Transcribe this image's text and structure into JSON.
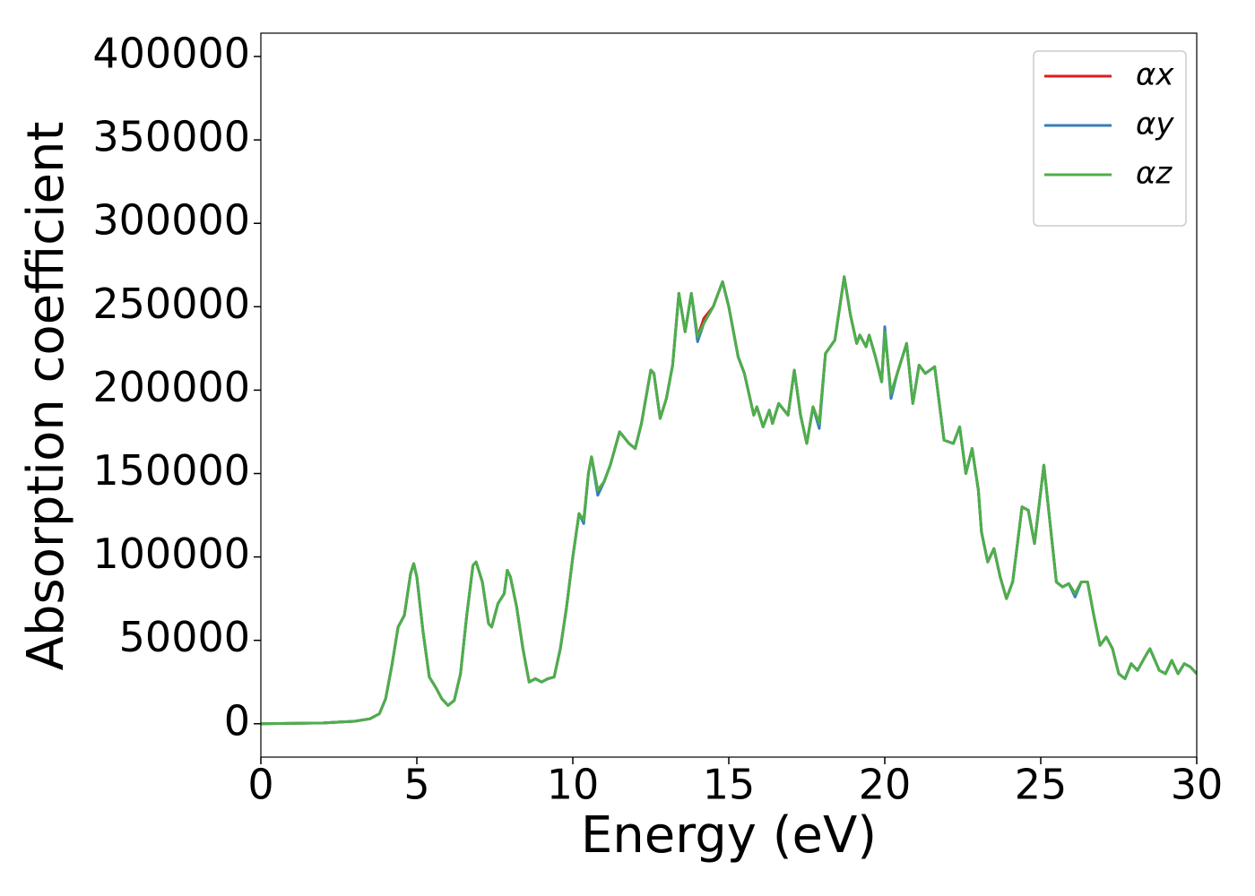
{
  "chart_data": {
    "type": "line",
    "xlabel": "Energy (eV)",
    "ylabel": "Absorption coefficient",
    "xlim": [
      0,
      30
    ],
    "ylim": [
      -20000,
      414000
    ],
    "xticks": [
      0,
      5,
      10,
      15,
      20,
      25,
      30
    ],
    "yticks": [
      0,
      50000,
      100000,
      150000,
      200000,
      250000,
      300000,
      350000,
      400000
    ],
    "grid": false,
    "legend": "upper right",
    "x": [
      0,
      2,
      3,
      3.5,
      3.8,
      4.0,
      4.2,
      4.4,
      4.6,
      4.8,
      4.9,
      5.0,
      5.2,
      5.4,
      5.6,
      5.8,
      6.0,
      6.2,
      6.4,
      6.6,
      6.8,
      6.9,
      7.1,
      7.3,
      7.4,
      7.6,
      7.8,
      7.9,
      8.0,
      8.2,
      8.4,
      8.6,
      8.8,
      9.0,
      9.2,
      9.4,
      9.6,
      9.8,
      10.0,
      10.2,
      10.35,
      10.5,
      10.6,
      10.8,
      11.0,
      11.2,
      11.5,
      11.8,
      12.0,
      12.2,
      12.5,
      12.6,
      12.8,
      13.0,
      13.2,
      13.4,
      13.6,
      13.8,
      14.0,
      14.2,
      14.5,
      14.8,
      15.0,
      15.3,
      15.5,
      15.8,
      15.9,
      16.1,
      16.3,
      16.4,
      16.6,
      16.9,
      17.1,
      17.3,
      17.5,
      17.7,
      17.9,
      18.1,
      18.4,
      18.7,
      18.9,
      19.1,
      19.2,
      19.4,
      19.5,
      19.7,
      19.9,
      20.0,
      20.2,
      20.4,
      20.7,
      20.9,
      21.1,
      21.3,
      21.6,
      21.9,
      22.2,
      22.4,
      22.6,
      22.8,
      23.0,
      23.1,
      23.3,
      23.5,
      23.7,
      23.9,
      24.1,
      24.4,
      24.6,
      24.8,
      25.1,
      25.3,
      25.5,
      25.7,
      25.9,
      26.1,
      26.3,
      26.5,
      26.7,
      26.9,
      27.1,
      27.3,
      27.5,
      27.7,
      27.9,
      28.1,
      28.4,
      28.5,
      28.8,
      29.0,
      29.2,
      29.4,
      29.6,
      29.8,
      30.0
    ],
    "series": [
      {
        "name": "αx",
        "color": "#e41a1c",
        "values": [
          0,
          500,
          1500,
          3000,
          6000,
          15000,
          35000,
          58000,
          65000,
          90000,
          96000,
          88000,
          55000,
          28000,
          22000,
          15000,
          11000,
          14000,
          30000,
          65000,
          95000,
          97000,
          85000,
          60000,
          58000,
          72000,
          78000,
          92000,
          88000,
          70000,
          45000,
          25000,
          27000,
          25000,
          27000,
          28000,
          45000,
          70000,
          100000,
          126000,
          122000,
          150000,
          160000,
          140000,
          145000,
          155000,
          175000,
          168000,
          165000,
          180000,
          212000,
          210000,
          183000,
          195000,
          215000,
          258000,
          235000,
          258000,
          232000,
          243000,
          250000,
          265000,
          250000,
          220000,
          210000,
          185000,
          190000,
          178000,
          188000,
          180000,
          192000,
          185000,
          212000,
          185000,
          168000,
          190000,
          180000,
          222000,
          230000,
          268000,
          245000,
          228000,
          233000,
          226000,
          233000,
          220000,
          205000,
          235000,
          198000,
          210000,
          228000,
          192000,
          215000,
          210000,
          214000,
          170000,
          168000,
          178000,
          150000,
          165000,
          140000,
          115000,
          97000,
          105000,
          88000,
          75000,
          85000,
          130000,
          128000,
          108000,
          155000,
          120000,
          85000,
          82000,
          84000,
          78000,
          85000,
          85000,
          65000,
          47000,
          52000,
          45000,
          30000,
          27000,
          36000,
          32000,
          42000,
          45000,
          32000,
          30000,
          38000,
          30000,
          36000,
          34000,
          30000
        ]
      },
      {
        "name": "αy",
        "color": "#377eb8",
        "values": [
          0,
          500,
          1500,
          3000,
          6000,
          15000,
          35000,
          58000,
          65000,
          90000,
          96000,
          88000,
          55000,
          28000,
          22000,
          15000,
          11000,
          14000,
          30000,
          65000,
          95000,
          97000,
          85000,
          60000,
          58000,
          72000,
          78000,
          92000,
          88000,
          70000,
          45000,
          25000,
          27000,
          25000,
          27000,
          28000,
          45000,
          70000,
          100000,
          126000,
          120000,
          150000,
          160000,
          137000,
          145000,
          155000,
          175000,
          168000,
          165000,
          180000,
          212000,
          210000,
          183000,
          195000,
          215000,
          258000,
          235000,
          258000,
          229000,
          240000,
          250000,
          265000,
          250000,
          220000,
          210000,
          185000,
          190000,
          178000,
          188000,
          180000,
          192000,
          185000,
          212000,
          185000,
          168000,
          190000,
          177000,
          222000,
          230000,
          268000,
          245000,
          228000,
          233000,
          226000,
          233000,
          220000,
          205000,
          238000,
          195000,
          210000,
          228000,
          192000,
          215000,
          210000,
          214000,
          170000,
          168000,
          178000,
          150000,
          165000,
          140000,
          115000,
          97000,
          105000,
          88000,
          75000,
          85000,
          130000,
          128000,
          108000,
          155000,
          120000,
          85000,
          82000,
          84000,
          76000,
          85000,
          85000,
          65000,
          47000,
          52000,
          45000,
          30000,
          27000,
          36000,
          32000,
          42000,
          45000,
          32000,
          30000,
          38000,
          30000,
          36000,
          34000,
          30000
        ]
      },
      {
        "name": "αz",
        "color": "#4daf4a",
        "values": [
          0,
          500,
          1500,
          3000,
          6000,
          15000,
          35000,
          58000,
          65000,
          90000,
          96000,
          88000,
          55000,
          28000,
          22000,
          15000,
          11000,
          14000,
          30000,
          65000,
          95000,
          97000,
          85000,
          60000,
          58000,
          72000,
          78000,
          92000,
          88000,
          70000,
          45000,
          25000,
          27000,
          25000,
          27000,
          28000,
          45000,
          70000,
          100000,
          126000,
          122000,
          150000,
          160000,
          140000,
          145000,
          155000,
          175000,
          168000,
          165000,
          180000,
          212000,
          210000,
          183000,
          195000,
          215000,
          258000,
          235000,
          258000,
          232000,
          240000,
          250000,
          265000,
          250000,
          220000,
          210000,
          185000,
          190000,
          178000,
          188000,
          180000,
          192000,
          185000,
          212000,
          185000,
          168000,
          190000,
          180000,
          222000,
          230000,
          268000,
          245000,
          228000,
          233000,
          226000,
          233000,
          220000,
          205000,
          235000,
          198000,
          210000,
          228000,
          192000,
          215000,
          210000,
          214000,
          170000,
          168000,
          178000,
          150000,
          165000,
          140000,
          115000,
          97000,
          105000,
          88000,
          75000,
          85000,
          130000,
          128000,
          108000,
          155000,
          120000,
          85000,
          82000,
          84000,
          78000,
          85000,
          85000,
          65000,
          47000,
          52000,
          45000,
          30000,
          27000,
          36000,
          32000,
          42000,
          45000,
          32000,
          30000,
          38000,
          30000,
          36000,
          34000,
          30000
        ]
      }
    ]
  }
}
